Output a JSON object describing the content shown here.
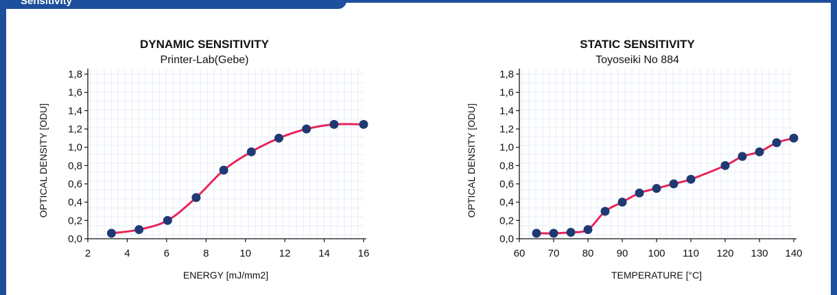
{
  "section": {
    "tab_label": "Sensitivity"
  },
  "colors": {
    "frame": "#1d4f9c",
    "line": "#e8245a",
    "marker": "#1f3a73",
    "grid": "#e6ecf7"
  },
  "chart_data": [
    {
      "type": "line",
      "title": "DYNAMIC SENSITIVITY",
      "subtitle": "Printer-Lab(Gebe)",
      "xlabel": "ENERGY [mJ/mm2]",
      "ylabel": "OPTICAL DENSITY [ODU]",
      "xlim": [
        2,
        16
      ],
      "ylim": [
        0,
        1.8
      ],
      "xticks": [
        2,
        4,
        6,
        8,
        10,
        12,
        14,
        16
      ],
      "xtick_labels": [
        "2",
        "4",
        "6",
        "8",
        "10",
        "12",
        "14",
        "16"
      ],
      "yticks": [
        0,
        0.2,
        0.4,
        0.6,
        0.8,
        1.0,
        1.2,
        1.4,
        1.6,
        1.8
      ],
      "ytick_labels": [
        "0,0",
        "0,2",
        "0,4",
        "0,6",
        "0,8",
        "1,0",
        "1,2",
        "1,4",
        "1,6",
        "1,8"
      ],
      "grid": false,
      "series": [
        {
          "x": [
            3.2,
            4.6,
            6.05,
            7.5,
            8.9,
            10.3,
            11.7,
            13.1,
            14.5,
            16.0
          ],
          "y": [
            0.06,
            0.1,
            0.2,
            0.45,
            0.75,
            0.95,
            1.1,
            1.2,
            1.25,
            1.25
          ]
        }
      ]
    },
    {
      "type": "line",
      "title": "STATIC SENSITIVITY",
      "subtitle": "Toyoseiki No 884",
      "xlabel": "TEMPERATURE [°C]",
      "ylabel": "OPTICAL DENSITY [ODU]",
      "xlim": [
        60,
        140
      ],
      "ylim": [
        0,
        1.8
      ],
      "xticks": [
        60,
        70,
        80,
        90,
        100,
        110,
        120,
        130,
        140
      ],
      "xtick_labels": [
        "60",
        "70",
        "80",
        "90",
        "100",
        "110",
        "120",
        "130",
        "140"
      ],
      "yticks": [
        0,
        0.2,
        0.4,
        0.6,
        0.8,
        1.0,
        1.2,
        1.4,
        1.6,
        1.8
      ],
      "ytick_labels": [
        "0,0",
        "0,2",
        "0,4",
        "0,6",
        "0,8",
        "1,0",
        "1,2",
        "1,4",
        "1,6",
        "1,8"
      ],
      "grid": false,
      "series": [
        {
          "x": [
            65,
            70,
            75,
            80,
            85,
            90,
            95,
            100,
            105,
            110,
            120,
            125,
            130,
            135,
            140
          ],
          "y": [
            0.06,
            0.06,
            0.07,
            0.1,
            0.3,
            0.4,
            0.5,
            0.55,
            0.6,
            0.65,
            0.8,
            0.9,
            0.95,
            1.05,
            1.1
          ]
        }
      ]
    }
  ]
}
